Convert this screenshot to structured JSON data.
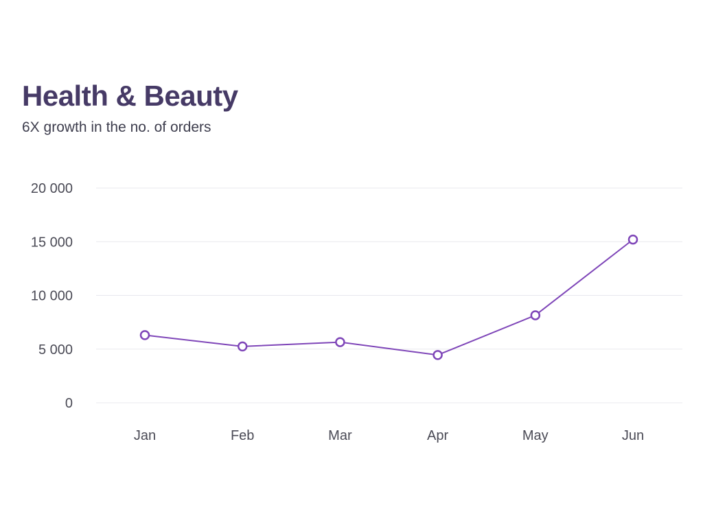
{
  "chart_data": {
    "type": "line",
    "title": "Health & Beauty",
    "subtitle": "6X growth in the no. of orders",
    "xlabel": "",
    "ylabel": "",
    "categories": [
      "Jan",
      "Feb",
      "Mar",
      "Apr",
      "May",
      "Jun"
    ],
    "series": [
      {
        "values": [
          6300,
          5250,
          5650,
          4450,
          8150,
          15200
        ]
      }
    ],
    "ylim": [
      0,
      20000
    ],
    "yticks": [
      0,
      5000,
      10000,
      15000,
      20000
    ],
    "ytick_labels": [
      "0",
      "5 000",
      "10 000",
      "15 000",
      "20 000"
    ],
    "grid": true,
    "legend": "none",
    "colors": {
      "line": "#7e45b8",
      "title": "#463a66",
      "grid": "#e8e8ee"
    }
  }
}
